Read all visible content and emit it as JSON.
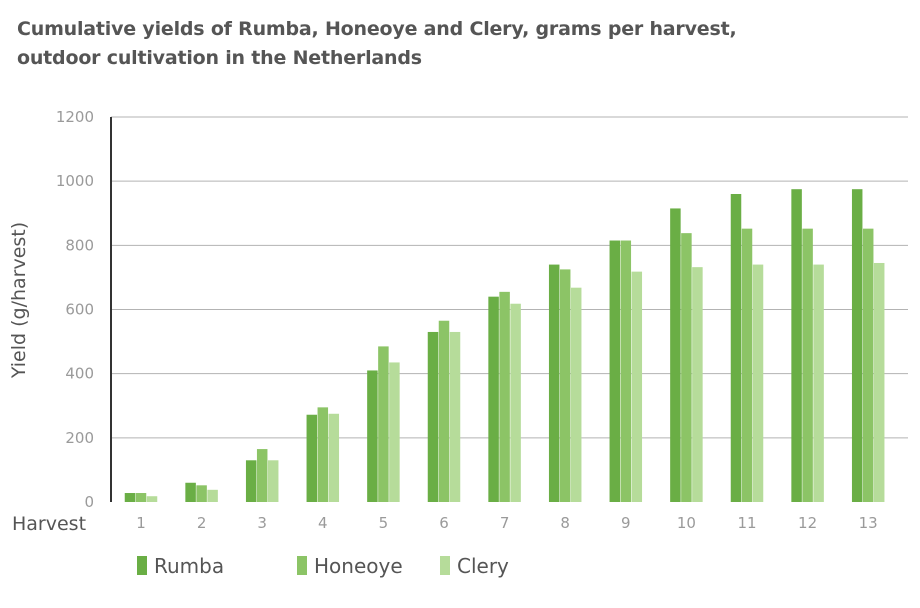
{
  "chart_data": {
    "type": "bar",
    "title_line1": "Cumulative yields of Rumba, Honeoye and Clery, grams per harvest,",
    "title_line2": "outdoor cultivation in the Netherlands",
    "xlabel": "Harvest",
    "ylabel": "Yield (g/harvest)",
    "ylim": [
      0,
      1200
    ],
    "yticks": [
      0,
      200,
      400,
      600,
      800,
      1000,
      1200
    ],
    "grid": true,
    "legend_position": "bottom-left",
    "categories": [
      "1",
      "2",
      "3",
      "4",
      "5",
      "6",
      "7",
      "8",
      "9",
      "10",
      "11",
      "12",
      "13"
    ],
    "series": [
      {
        "name": "Rumba",
        "color": "#6aae45",
        "values": [
          28,
          60,
          130,
          272,
          410,
          530,
          640,
          740,
          815,
          915,
          960,
          975,
          975
        ]
      },
      {
        "name": "Honeoye",
        "color": "#8cc466",
        "values": [
          28,
          52,
          165,
          295,
          485,
          565,
          655,
          725,
          815,
          838,
          852,
          852,
          852
        ]
      },
      {
        "name": "Clery",
        "color": "#b6dc9a",
        "values": [
          18,
          38,
          130,
          275,
          435,
          530,
          618,
          668,
          718,
          732,
          740,
          740,
          745
        ]
      }
    ]
  }
}
